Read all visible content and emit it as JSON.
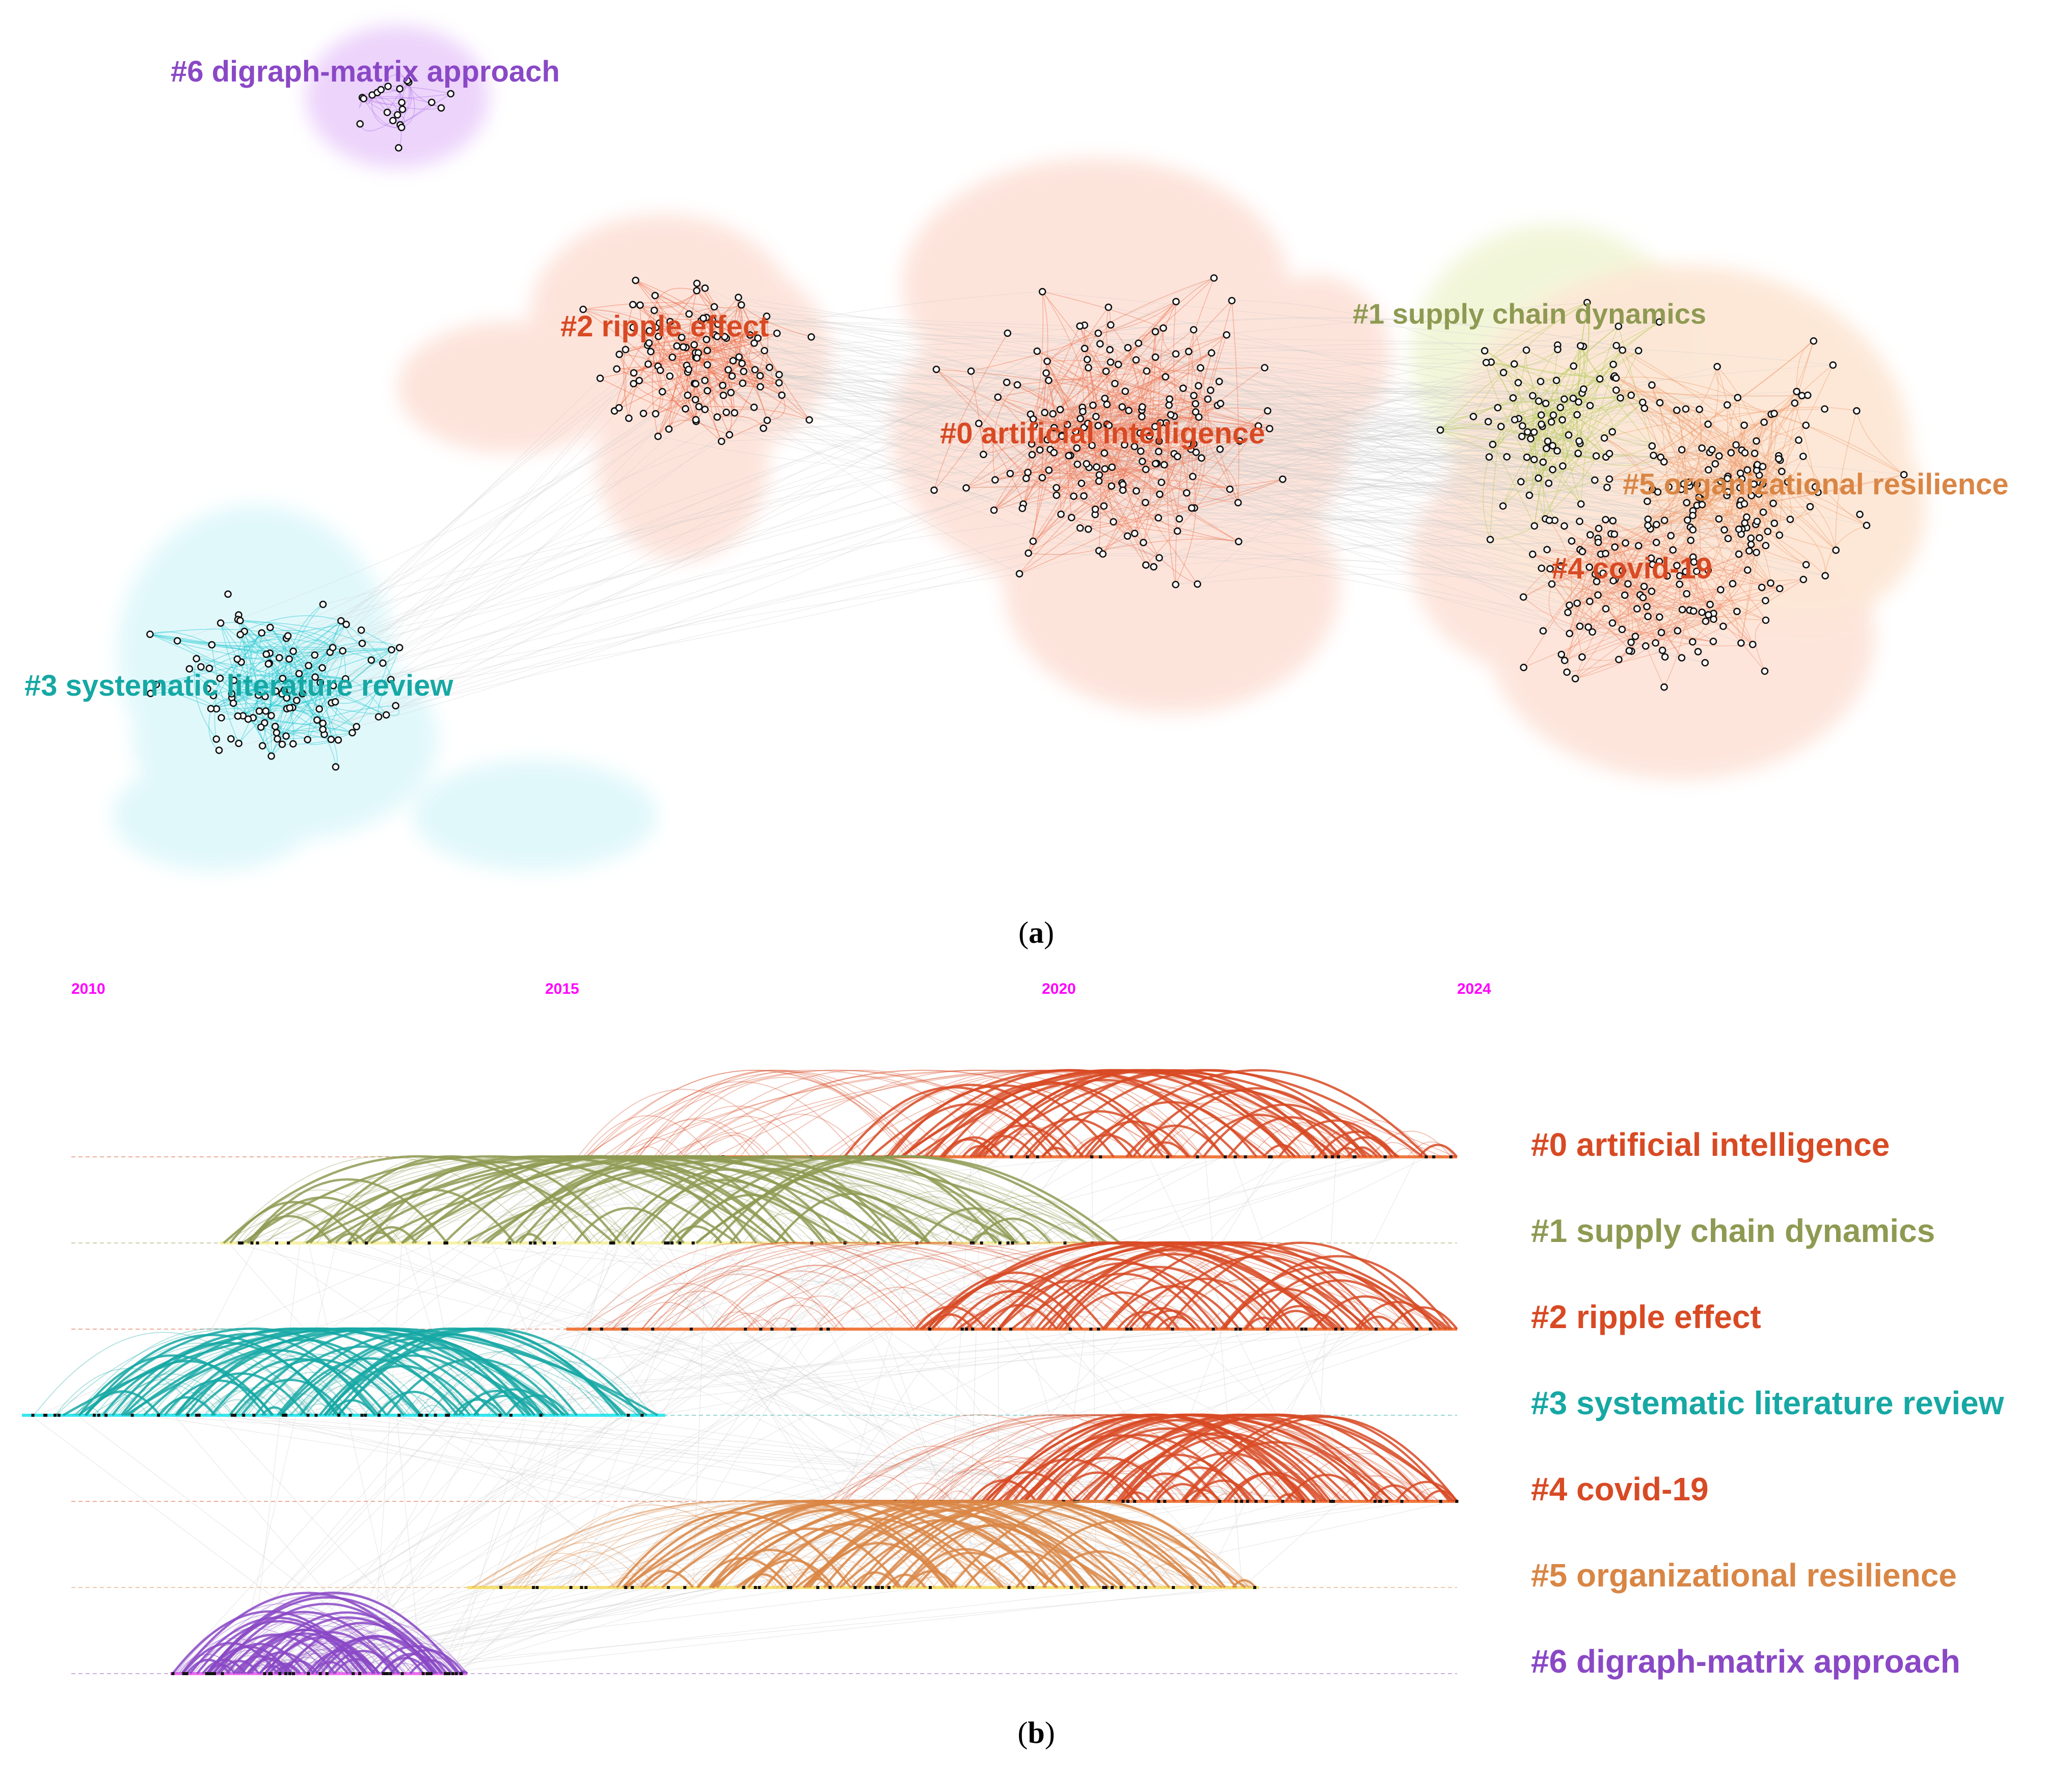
{
  "figure": {
    "panel_a_caption": "a",
    "panel_b_caption": "b"
  },
  "colors": {
    "c0": "#d84a24",
    "c1": "#8e9a52",
    "c2": "#d84a24",
    "c3": "#16a8a4",
    "c4": "#d84a24",
    "c5": "#d98645",
    "c6": "#8a48c6",
    "year": "#ff00ff"
  },
  "clusters": [
    {
      "id": "0",
      "label": "#0 artificial intelligence",
      "color": "#d84a24"
    },
    {
      "id": "1",
      "label": "#1 supply chain dynamics",
      "color": "#8e9a52"
    },
    {
      "id": "2",
      "label": "#2 ripple effect",
      "color": "#d84a24"
    },
    {
      "id": "3",
      "label": "#3 systematic literature review",
      "color": "#16a8a4"
    },
    {
      "id": "4",
      "label": "#4 covid-19",
      "color": "#d84a24"
    },
    {
      "id": "5",
      "label": "#5 organizational resilience",
      "color": "#d98645"
    },
    {
      "id": "6",
      "label": "#6 digraph-matrix approach",
      "color": "#8a48c6"
    }
  ],
  "timeline": {
    "years": [
      "2010",
      "2015",
      "2020",
      "2024"
    ],
    "year_start": 2010,
    "year_end": 2024,
    "rows": [
      {
        "cluster": "#0 artificial intelligence",
        "start": 2015.0,
        "end": 2024.0,
        "dense_from": 2017.8
      },
      {
        "cluster": "#1 supply chain dynamics",
        "start": 2011.5,
        "end": 2020.6,
        "dense_from": 2011.5
      },
      {
        "cluster": "#2 ripple effect",
        "start": 2015.0,
        "end": 2024.0,
        "dense_from": 2018.5
      },
      {
        "cluster": "#3 systematic literature review",
        "start": 2009.5,
        "end": 2016.0,
        "dense_from": 2009.8
      },
      {
        "cluster": "#4 covid-19",
        "start": 2017.5,
        "end": 2024.0,
        "dense_from": 2019.0
      },
      {
        "cluster": "#5 organizational resilience",
        "start": 2014.0,
        "end": 2022.0,
        "dense_from": 2015.5
      },
      {
        "cluster": "#6 digraph-matrix approach",
        "start": 2011.0,
        "end": 2014.0,
        "dense_from": 2011.0
      }
    ]
  }
}
